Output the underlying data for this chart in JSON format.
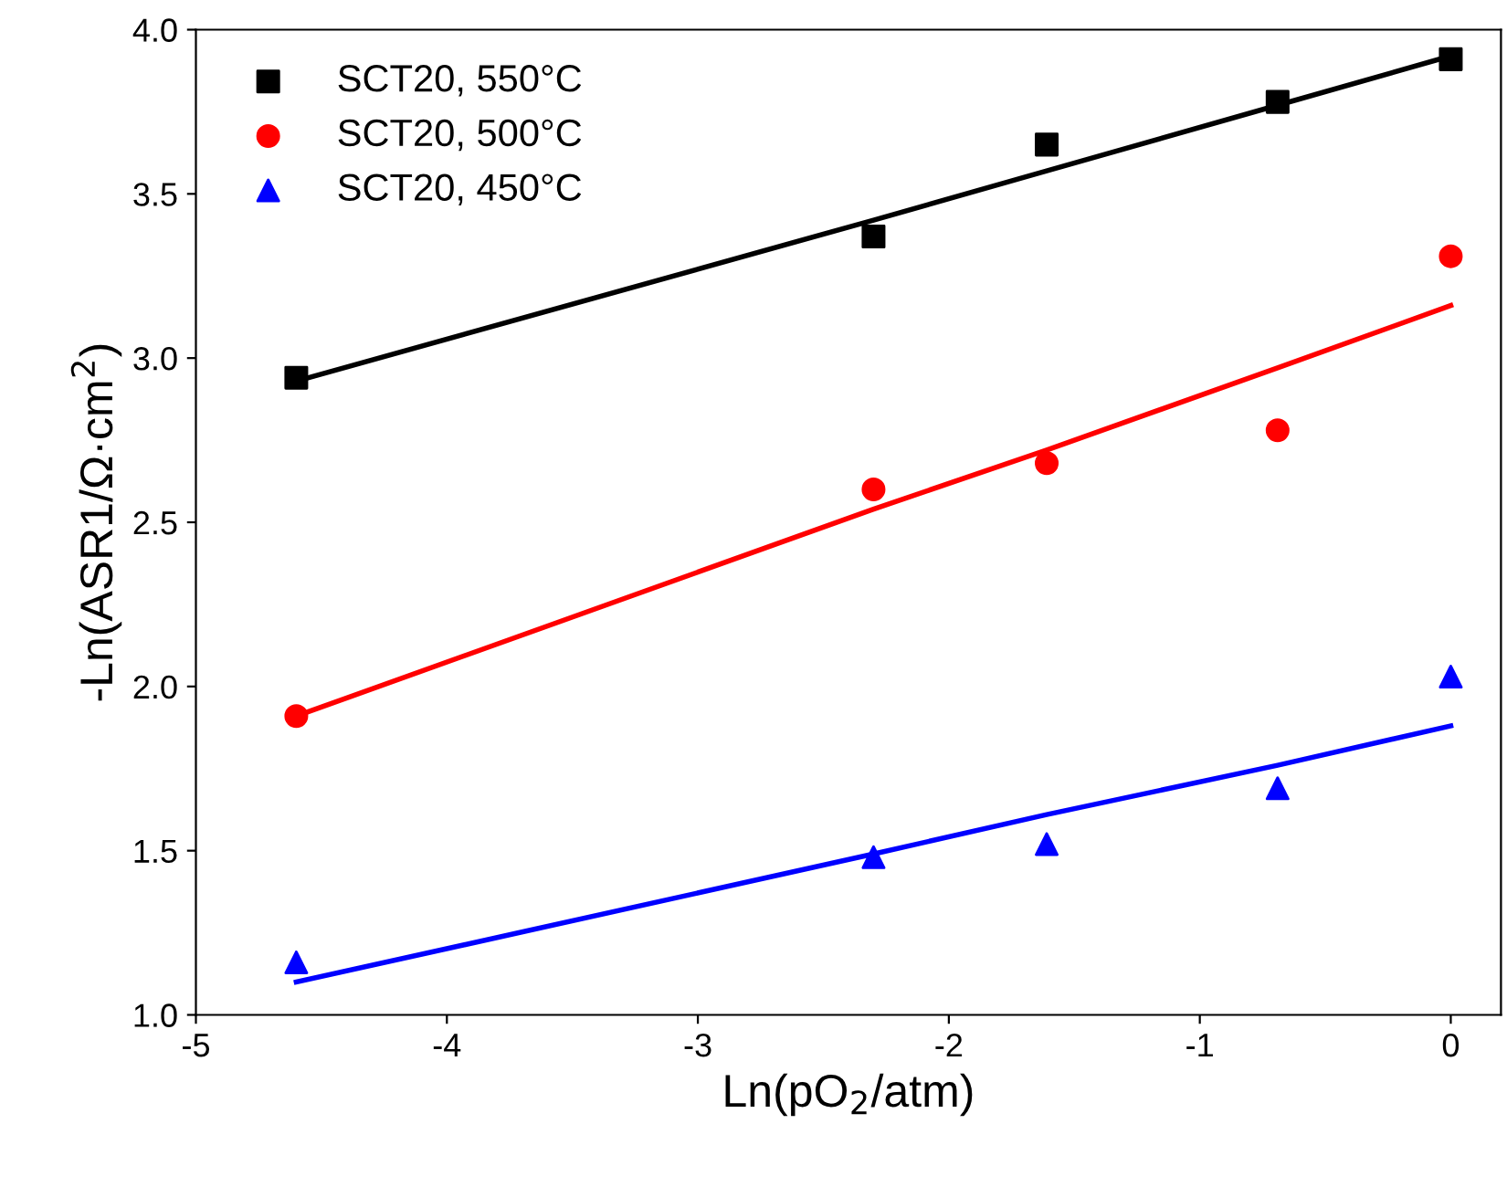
{
  "chart_data": {
    "type": "scatter",
    "xlabel": "Ln(pO$_{2}$/atm)",
    "ylabel": "-Ln(ASR1/Ω·cm$^{2}$)",
    "x": [
      -4.6,
      -2.3,
      -1.61,
      -0.69,
      0
    ],
    "series": [
      {
        "name": "SCT20, 550°C",
        "color": "#000000",
        "marker": "square",
        "values": [
          2.94,
          3.37,
          3.65,
          3.78,
          3.91
        ]
      },
      {
        "name": "SCT20, 500°C",
        "color": "#ff0000",
        "marker": "circle",
        "values": [
          1.91,
          2.6,
          2.68,
          2.78,
          3.31
        ]
      },
      {
        "name": "SCT20, 450°C",
        "color": "#0000ff",
        "marker": "triangle",
        "values": [
          1.16,
          1.48,
          1.52,
          1.69,
          2.03
        ]
      },
      {
        "type": "line",
        "color": "#000000",
        "values": [
          2.93,
          3.42,
          3.57,
          3.77,
          3.92
        ]
      },
      {
        "type": "line",
        "color": "#ff0000",
        "values": [
          1.91,
          2.54,
          2.72,
          2.97,
          3.16
        ]
      },
      {
        "type": "line",
        "color": "#0000ff",
        "values": [
          1.1,
          1.49,
          1.61,
          1.76,
          1.88
        ]
      }
    ],
    "xlim": [
      -5,
      0.2
    ],
    "ylim": [
      1,
      4
    ],
    "xticks": [
      -5,
      -4,
      -3,
      -2,
      -1,
      0
    ],
    "yticks": [
      {
        "value": 1,
        "label": "1.0"
      },
      {
        "value": 1.5,
        "label": "1.5"
      },
      {
        "value": 2,
        "label": "2.0"
      },
      {
        "value": 2.5,
        "label": "2.5"
      },
      {
        "value": 3,
        "label": "3.0"
      },
      {
        "value": 3.5,
        "label": "3.5"
      },
      {
        "value": 4,
        "label": "4.0"
      }
    ],
    "grid": false,
    "legend": "top left"
  }
}
